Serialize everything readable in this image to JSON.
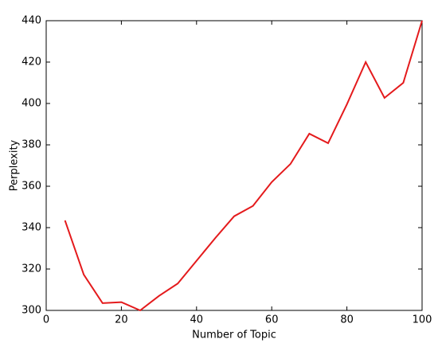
{
  "chart_data": {
    "type": "line",
    "x_label": "Number of Topic",
    "y_label": "Perplexity",
    "x": [
      5,
      10,
      15,
      20,
      25,
      30,
      35,
      40,
      45,
      50,
      55,
      60,
      65,
      70,
      75,
      80,
      85,
      90,
      95,
      100
    ],
    "series": [
      {
        "name": "Perplexity",
        "color": "#e41a1c",
        "values": [
          343.5,
          317.3,
          303.5,
          304,
          300,
          307,
          313,
          324,
          335,
          345.5,
          350.5,
          362,
          370.8,
          385.4,
          380.8,
          399.6,
          420,
          402.7,
          410,
          440
        ]
      }
    ],
    "xlim": [
      0,
      100
    ],
    "xticks": [
      0,
      20,
      40,
      60,
      80,
      100
    ],
    "ylim": [
      300,
      440
    ],
    "yticks": [
      300,
      320,
      340,
      360,
      380,
      400,
      420,
      440
    ],
    "grid": false
  }
}
